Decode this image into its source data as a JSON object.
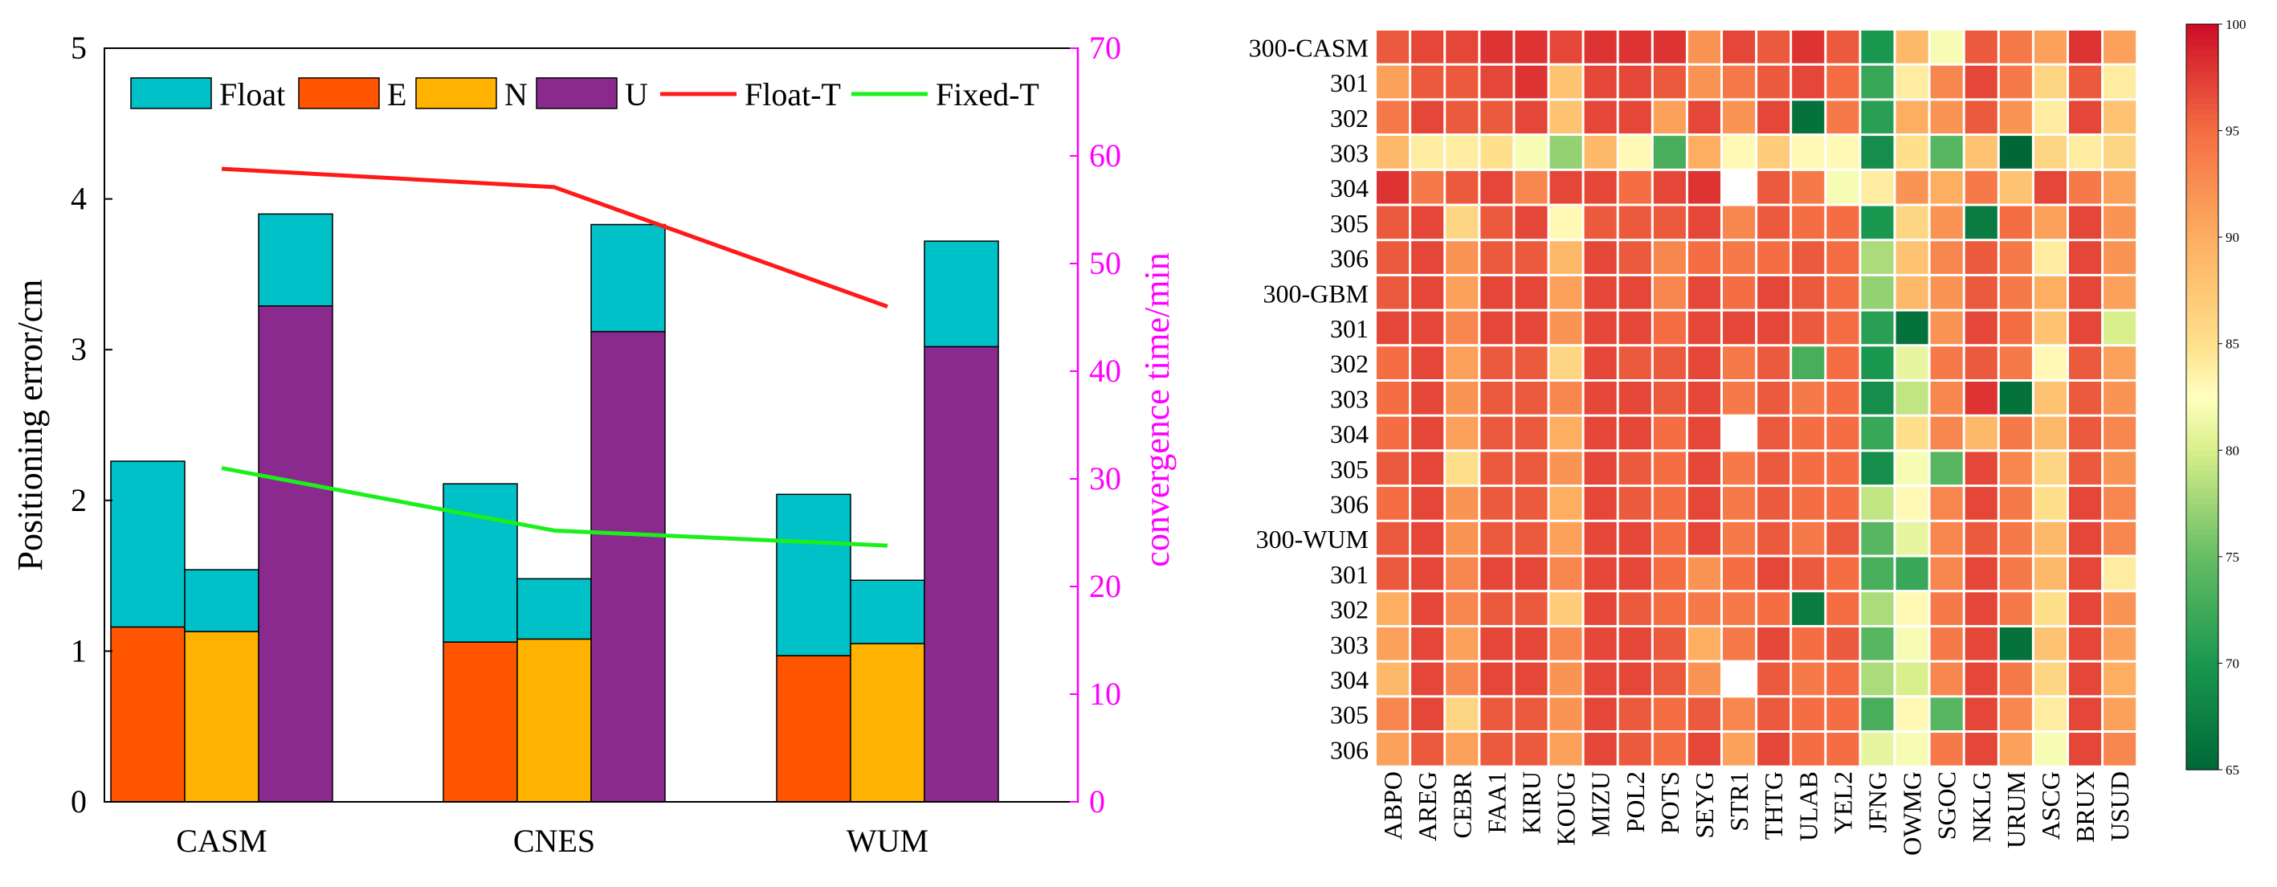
{
  "chart_data": [
    {
      "type": "bar",
      "stacking": "stacked",
      "categories": [
        "CASM",
        "CNES",
        "WUM"
      ],
      "ylabel": "Positioning error/cm",
      "ylim": [
        0,
        5
      ],
      "yticks": [
        "0",
        "1",
        "2",
        "3",
        "4",
        "5"
      ],
      "y2label": "convergence time/min",
      "y2lim": [
        0,
        70
      ],
      "y2ticks": [
        "0",
        "10",
        "20",
        "30",
        "40",
        "50",
        "60",
        "70"
      ],
      "bars": [
        {
          "name": "E",
          "fixed": [
            1.16,
            1.06,
            0.97
          ],
          "float_total": [
            2.26,
            2.11,
            2.04
          ]
        },
        {
          "name": "N",
          "fixed": [
            1.13,
            1.08,
            1.05
          ],
          "float_total": [
            1.54,
            1.48,
            1.47
          ]
        },
        {
          "name": "U",
          "fixed": [
            3.29,
            3.12,
            3.02
          ],
          "float_total": [
            3.9,
            3.83,
            3.72
          ]
        }
      ],
      "series": [
        {
          "name": "Float-T",
          "axis": "right",
          "values": [
            58.8,
            57.1,
            46.0
          ]
        },
        {
          "name": "Fixed-T",
          "axis": "right",
          "values": [
            31.0,
            25.2,
            23.8
          ]
        }
      ],
      "legend": [
        {
          "label": "Float",
          "kind": "bar",
          "color": "#00C0C8"
        },
        {
          "label": "E",
          "kind": "bar",
          "color": "#FF5500"
        },
        {
          "label": "N",
          "kind": "bar",
          "color": "#FFB300"
        },
        {
          "label": "U",
          "kind": "bar",
          "color": "#8B2A8E"
        },
        {
          "label": "Float-T",
          "kind": "line",
          "color": "#FF1A1A"
        },
        {
          "label": "Fixed-T",
          "kind": "line",
          "color": "#1AF01A"
        }
      ],
      "legend_position": "top",
      "colors": {
        "Float": "#00C0C8",
        "E": "#FF5500",
        "N": "#FFB300",
        "U": "#8B2A8E",
        "Float-T": "#FF1A1A",
        "Fixed-T": "#1AF01A",
        "right_axis": "#FF00FF"
      }
    },
    {
      "type": "heatmap",
      "rows": [
        "300-CASM",
        "301",
        "302",
        "303",
        "304",
        "305",
        "306",
        "300-GBM",
        "301",
        "302",
        "303",
        "304",
        "305",
        "306",
        "300-WUM",
        "301",
        "302",
        "303",
        "304",
        "305",
        "306"
      ],
      "columns": [
        "ABPO",
        "AREG",
        "CEBR",
        "FAA1",
        "KIRU",
        "KOUG",
        "MIZU",
        "POL2",
        "POTS",
        "SEYG",
        "STR1",
        "THTG",
        "ULAB",
        "YEL2",
        "JFNG",
        "OWMG",
        "SGOC",
        "NKLG",
        "URUM",
        "ASCG",
        "BRUX",
        "USUD"
      ],
      "values": [
        [
          96,
          97,
          97,
          98,
          98,
          97,
          98,
          98,
          98,
          92,
          97,
          96,
          98,
          96,
          70,
          89,
          82,
          96,
          94,
          91,
          98,
          91
        ],
        [
          91,
          96,
          96,
          97,
          98,
          88,
          97,
          97,
          96,
          92,
          94,
          96,
          97,
          95,
          72,
          84,
          93,
          97,
          94,
          86,
          96,
          84
        ],
        [
          94,
          97,
          96,
          96,
          97,
          88,
          97,
          97,
          91,
          97,
          92,
          97,
          66,
          94,
          71,
          90,
          92,
          96,
          92,
          84,
          97,
          88
        ],
        [
          89,
          84,
          84,
          85,
          82,
          77,
          89,
          83,
          73,
          90,
          83,
          87,
          83,
          83,
          69,
          85,
          74,
          88,
          64,
          86,
          84,
          86
        ],
        [
          98,
          94,
          96,
          97,
          93,
          97,
          97,
          95,
          97,
          98,
          null,
          96,
          94,
          82,
          84,
          92,
          90,
          94,
          88,
          97,
          94,
          91
        ],
        [
          96,
          97,
          86,
          96,
          97,
          83,
          96,
          96,
          96,
          97,
          93,
          96,
          95,
          95,
          70,
          86,
          92,
          67,
          95,
          91,
          97,
          92
        ],
        [
          96,
          97,
          92,
          96,
          96,
          89,
          97,
          96,
          93,
          95,
          94,
          95,
          96,
          95,
          78,
          88,
          93,
          96,
          94,
          84,
          97,
          92
        ],
        [
          96,
          97,
          91,
          97,
          97,
          91,
          97,
          97,
          93,
          97,
          95,
          97,
          96,
          95,
          77,
          89,
          92,
          96,
          94,
          90,
          97,
          91
        ],
        [
          97,
          97,
          93,
          97,
          97,
          92,
          97,
          97,
          95,
          97,
          97,
          97,
          96,
          95,
          71,
          66,
          92,
          97,
          95,
          88,
          97,
          80
        ],
        [
          95,
          97,
          91,
          96,
          96,
          86,
          97,
          96,
          96,
          97,
          94,
          96,
          73,
          95,
          70,
          81,
          94,
          96,
          94,
          83,
          96,
          91
        ],
        [
          95,
          97,
          92,
          96,
          96,
          93,
          97,
          97,
          96,
          97,
          94,
          96,
          94,
          95,
          69,
          79,
          93,
          98,
          66,
          88,
          96,
          92
        ],
        [
          95,
          97,
          91,
          96,
          96,
          90,
          97,
          97,
          95,
          97,
          null,
          96,
          95,
          95,
          72,
          85,
          93,
          89,
          94,
          89,
          96,
          93
        ],
        [
          96,
          97,
          85,
          96,
          96,
          92,
          97,
          96,
          95,
          97,
          94,
          96,
          95,
          95,
          69,
          82,
          74,
          97,
          93,
          86,
          96,
          92
        ],
        [
          95,
          97,
          92,
          96,
          96,
          90,
          97,
          96,
          95,
          97,
          94,
          96,
          95,
          95,
          79,
          83,
          93,
          97,
          94,
          85,
          97,
          93
        ],
        [
          96,
          97,
          92,
          96,
          96,
          91,
          97,
          97,
          95,
          97,
          94,
          96,
          94,
          96,
          74,
          81,
          93,
          96,
          94,
          89,
          97,
          93
        ],
        [
          96,
          97,
          93,
          97,
          97,
          93,
          97,
          97,
          95,
          92,
          95,
          97,
          96,
          95,
          73,
          72,
          93,
          97,
          94,
          89,
          97,
          84
        ],
        [
          90,
          97,
          93,
          96,
          96,
          87,
          97,
          96,
          95,
          94,
          94,
          95,
          67,
          95,
          78,
          83,
          94,
          97,
          94,
          85,
          97,
          92
        ],
        [
          91,
          97,
          91,
          97,
          97,
          93,
          97,
          97,
          96,
          90,
          94,
          97,
          95,
          96,
          74,
          82,
          94,
          97,
          66,
          88,
          97,
          91
        ],
        [
          89,
          97,
          93,
          97,
          97,
          92,
          97,
          97,
          96,
          92,
          null,
          96,
          94,
          95,
          78,
          80,
          93,
          97,
          94,
          86,
          97,
          90
        ],
        [
          93,
          97,
          86,
          96,
          96,
          92,
          97,
          96,
          95,
          96,
          93,
          96,
          95,
          95,
          73,
          83,
          74,
          97,
          93,
          84,
          97,
          91
        ],
        [
          91,
          96,
          91,
          96,
          96,
          91,
          97,
          96,
          95,
          97,
          91,
          97,
          95,
          95,
          81,
          82,
          94,
          97,
          91,
          82,
          97,
          93
        ]
      ],
      "colorbar": {
        "min": 65,
        "max": 100,
        "ticks": [
          "65",
          "70",
          "75",
          "80",
          "85",
          "90",
          "95",
          "100"
        ],
        "missing_color": "#ffffff"
      }
    }
  ]
}
